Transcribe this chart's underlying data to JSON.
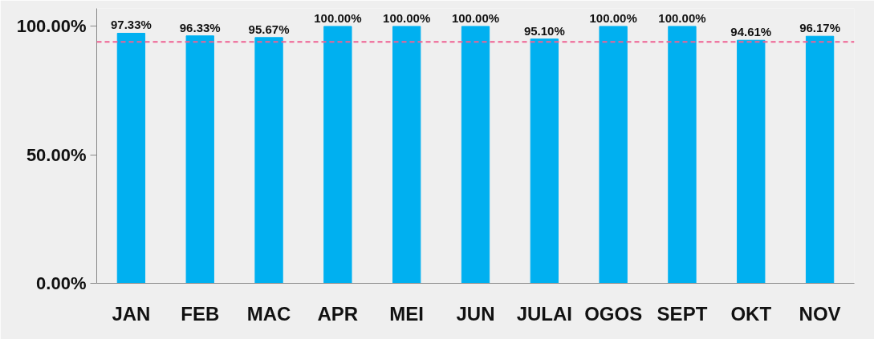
{
  "chart_data": {
    "type": "bar",
    "categories": [
      "JAN",
      "FEB",
      "MAC",
      "APR",
      "MEI",
      "JUN",
      "JULAI",
      "OGOS",
      "SEPT",
      "OKT",
      "NOV"
    ],
    "values": [
      97.33,
      96.33,
      95.67,
      100,
      100,
      100,
      95.1,
      100,
      100,
      94.61,
      96.17
    ],
    "value_labels": [
      "97.33%",
      "96.33%",
      "95.67%",
      "100.00%",
      "100.00%",
      "100.00%",
      "95.10%",
      "100.00%",
      "100.00%",
      "94.61%",
      "96.17%"
    ],
    "color": "#00b0f0",
    "ylim": [
      0,
      107
    ],
    "yticks": [
      {
        "value": 0,
        "label": "0.00%"
      },
      {
        "value": 50,
        "label": "50.00%"
      },
      {
        "value": 100,
        "label": "100.00%"
      }
    ],
    "ref_lines": [
      {
        "axis": "y",
        "value": 94,
        "color": "#f06292",
        "line_style": "dashed"
      }
    ],
    "grid": false
  }
}
